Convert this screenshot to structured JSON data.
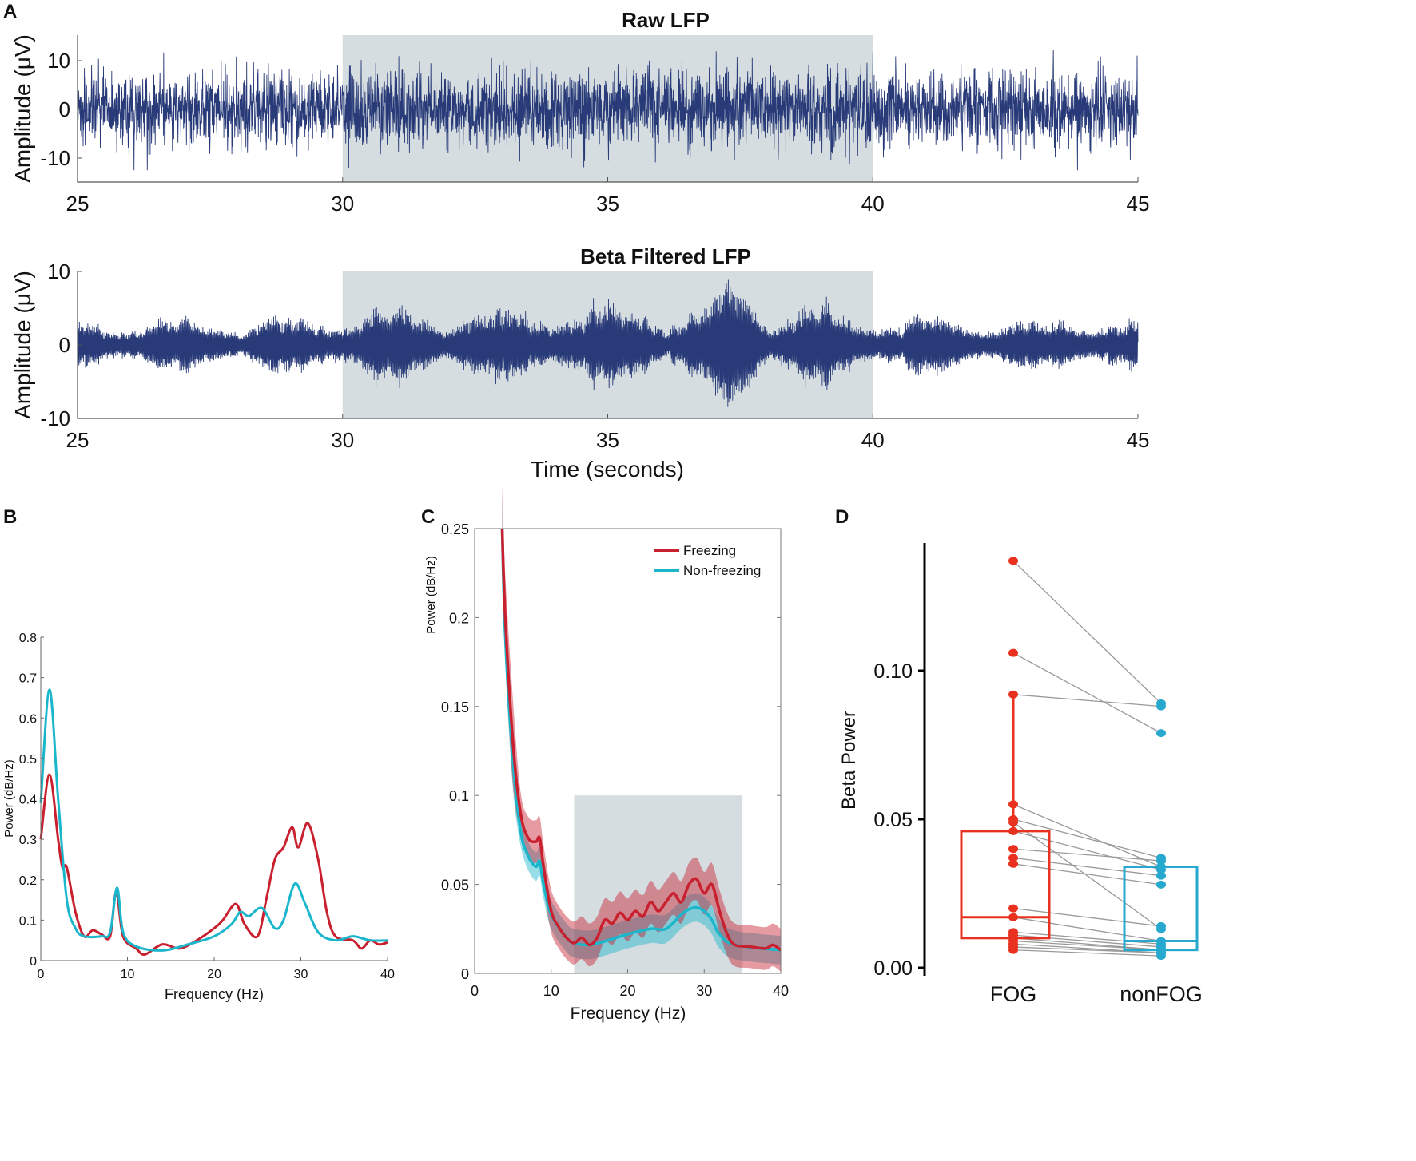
{
  "colors": {
    "signal": "#283a78",
    "shade": "#d5dde0",
    "freezing": "#c8202e",
    "nonfreezing": "#1ab6cc",
    "fog": "#e8321f",
    "nonfog": "#27a9cf",
    "pairline": "#9a9a9a"
  },
  "chart_data": [
    {
      "panel": "A",
      "type": "line",
      "title": "Raw LFP",
      "ylabel": "Amplitude (μV)",
      "xlim": [
        25,
        45
      ],
      "ylim": [
        -15,
        15
      ],
      "yticks": [
        "10",
        "0",
        "-10"
      ],
      "yticks_values": [
        10,
        0,
        -10
      ],
      "xticks": [
        "25",
        "30",
        "35",
        "40",
        "45"
      ],
      "xticks_values": [
        25,
        30,
        35,
        40,
        45
      ],
      "shaded_interval": [
        30,
        40
      ],
      "signal_amplitude_approx": 5
    },
    {
      "panel": "A2",
      "type": "line",
      "title": "Beta Filtered LFP",
      "ylabel": "Amplitude (μV)",
      "xlabel": "Time (seconds)",
      "xlim": [
        25,
        45
      ],
      "ylim": [
        -10,
        10
      ],
      "yticks": [
        "10",
        "0",
        "-10"
      ],
      "yticks_values": [
        10,
        0,
        -10
      ],
      "xticks": [
        "25",
        "30",
        "35",
        "40",
        "45"
      ],
      "xticks_values": [
        25,
        30,
        35,
        40,
        45
      ],
      "shaded_interval": [
        30,
        40
      ],
      "signal_amplitude_approx": 2.5
    },
    {
      "panel": "B",
      "type": "line",
      "xlabel": "Frequency (Hz)",
      "ylabel": "Power (dB/Hz)",
      "xlim": [
        0,
        40
      ],
      "ylim": [
        0,
        0.8
      ],
      "xticks": [
        "0",
        "10",
        "20",
        "30",
        "40"
      ],
      "xticks_values": [
        0,
        10,
        20,
        30,
        40
      ],
      "yticks": [
        "0",
        "0.1",
        "0.2",
        "0.3",
        "0.4",
        "0.5",
        "0.6",
        "0.7",
        "0.8"
      ],
      "yticks_values": [
        0,
        0.1,
        0.2,
        0.3,
        0.4,
        0.5,
        0.6,
        0.7,
        0.8
      ],
      "series": [
        {
          "name": "Freezing",
          "x": [
            0,
            1,
            2,
            2.5,
            3,
            4,
            5,
            6,
            7,
            8,
            8.7,
            9.5,
            11,
            12,
            14,
            16,
            18,
            20,
            21,
            22.5,
            23.5,
            25,
            26,
            27,
            28,
            29,
            29.7,
            30.8,
            32,
            33,
            34,
            36,
            37,
            38,
            39,
            40
          ],
          "y": [
            0.3,
            0.46,
            0.3,
            0.23,
            0.23,
            0.12,
            0.06,
            0.075,
            0.065,
            0.06,
            0.17,
            0.06,
            0.03,
            0.015,
            0.04,
            0.03,
            0.05,
            0.08,
            0.1,
            0.14,
            0.09,
            0.06,
            0.15,
            0.25,
            0.28,
            0.33,
            0.28,
            0.34,
            0.25,
            0.12,
            0.06,
            0.05,
            0.03,
            0.05,
            0.04,
            0.045
          ]
        },
        {
          "name": "Non-freezing",
          "x": [
            0,
            1,
            2,
            3,
            4,
            5,
            7,
            8,
            8.8,
            9.5,
            11,
            14,
            17,
            20,
            22,
            23,
            24,
            25.5,
            27,
            28,
            29.3,
            30.5,
            32,
            34,
            36,
            38,
            40
          ],
          "y": [
            0.39,
            0.67,
            0.4,
            0.15,
            0.08,
            0.06,
            0.06,
            0.07,
            0.18,
            0.07,
            0.035,
            0.025,
            0.04,
            0.06,
            0.09,
            0.12,
            0.11,
            0.13,
            0.08,
            0.1,
            0.19,
            0.14,
            0.07,
            0.05,
            0.06,
            0.05,
            0.05
          ]
        }
      ]
    },
    {
      "panel": "C",
      "type": "line",
      "xlabel": "Frequency (Hz)",
      "ylabel": "Power (dB/Hz)",
      "xlim": [
        0,
        40
      ],
      "ylim": [
        0,
        0.25
      ],
      "xticks": [
        "0",
        "10",
        "20",
        "30",
        "40"
      ],
      "xticks_values": [
        0,
        10,
        20,
        30,
        40
      ],
      "yticks": [
        "0",
        "0.05",
        "0.1",
        "0.15",
        "0.2",
        "0.25"
      ],
      "yticks_values": [
        0,
        0.05,
        0.1,
        0.15,
        0.2,
        0.25
      ],
      "shaded_region": {
        "x": [
          13,
          35
        ],
        "y": [
          0,
          0.1
        ]
      },
      "legend": [
        "Freezing",
        "Non-freezing"
      ],
      "legend_position": "top-right",
      "series": [
        {
          "name": "Freezing",
          "x": [
            3.6,
            4,
            5,
            6,
            7,
            8,
            8.5,
            9,
            10,
            11,
            12,
            13,
            14,
            15,
            16,
            17,
            18,
            19,
            20,
            21,
            22,
            23,
            24,
            25,
            26,
            27,
            28,
            29,
            30,
            31,
            32,
            33,
            34,
            36,
            38,
            39,
            40
          ],
          "y": [
            0.25,
            0.2,
            0.13,
            0.09,
            0.076,
            0.074,
            0.076,
            0.06,
            0.035,
            0.026,
            0.02,
            0.017,
            0.02,
            0.016,
            0.02,
            0.03,
            0.028,
            0.034,
            0.03,
            0.035,
            0.032,
            0.04,
            0.035,
            0.04,
            0.045,
            0.04,
            0.05,
            0.053,
            0.045,
            0.05,
            0.035,
            0.022,
            0.016,
            0.015,
            0.014,
            0.016,
            0.013
          ],
          "ci": 0.012
        },
        {
          "name": "Non-freezing",
          "x": [
            3.6,
            4,
            5,
            6,
            7,
            8,
            8.5,
            9,
            10,
            12,
            13,
            15,
            17,
            20,
            23,
            25,
            27,
            28,
            29,
            30,
            31,
            32,
            34,
            40
          ],
          "y": [
            0.25,
            0.19,
            0.12,
            0.08,
            0.066,
            0.06,
            0.063,
            0.05,
            0.033,
            0.02,
            0.017,
            0.016,
            0.018,
            0.022,
            0.025,
            0.025,
            0.033,
            0.036,
            0.037,
            0.035,
            0.03,
            0.022,
            0.016,
            0.013
          ],
          "ci": 0.008
        }
      ]
    },
    {
      "panel": "D",
      "type": "scatter",
      "ylabel": "Beta Power",
      "categories": [
        "FOG",
        "nonFOG"
      ],
      "ylim": [
        0,
        0.14
      ],
      "yticks": [
        "0.00",
        "0.05",
        "0.10"
      ],
      "yticks_values": [
        0,
        0.05,
        0.1
      ],
      "boxes": [
        {
          "name": "FOG",
          "q1": 0.01,
          "median": 0.017,
          "q3": 0.046,
          "whisker_low": 0.006,
          "whisker_high": 0.092
        },
        {
          "name": "nonFOG",
          "q1": 0.006,
          "median": 0.009,
          "q3": 0.034,
          "whisker_low": 0.004,
          "whisker_high": 0.038
        }
      ],
      "pairs": [
        [
          0.137,
          0.089
        ],
        [
          0.106,
          0.079
        ],
        [
          0.092,
          0.088
        ],
        [
          0.055,
          0.034
        ],
        [
          0.05,
          0.037
        ],
        [
          0.049,
          0.013
        ],
        [
          0.046,
          0.033
        ],
        [
          0.04,
          0.036
        ],
        [
          0.037,
          0.031
        ],
        [
          0.035,
          0.028
        ],
        [
          0.02,
          0.014
        ],
        [
          0.017,
          0.009
        ],
        [
          0.012,
          0.008
        ],
        [
          0.011,
          0.007
        ],
        [
          0.01,
          0.006
        ],
        [
          0.009,
          0.006
        ],
        [
          0.008,
          0.005
        ],
        [
          0.007,
          0.005
        ],
        [
          0.006,
          0.004
        ]
      ]
    }
  ],
  "panel_labels": {
    "a": "A",
    "b": "B",
    "c": "C",
    "d": "D"
  }
}
